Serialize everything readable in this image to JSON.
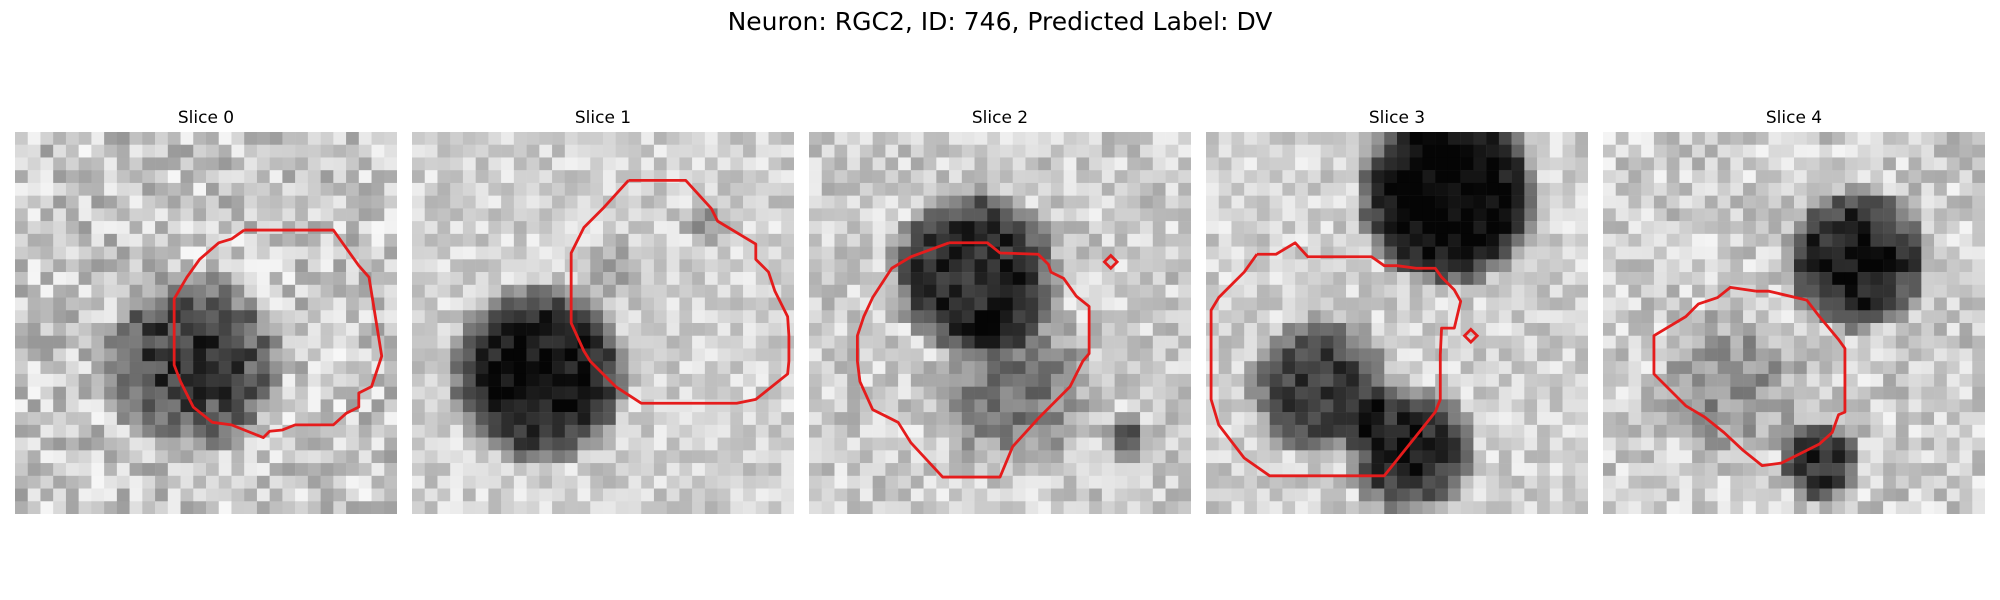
{
  "figure": {
    "title": "Neuron: RGC2, ID: 746, Predicted Label: DV"
  },
  "panels": [
    {
      "title": "Slice 0"
    },
    {
      "title": "Slice 1"
    },
    {
      "title": "Slice 2"
    },
    {
      "title": "Slice 3"
    },
    {
      "title": "Slice 4"
    }
  ],
  "colors": {
    "contour": "#e51c1c",
    "background": "#ffffff",
    "colormap": "gray"
  }
}
